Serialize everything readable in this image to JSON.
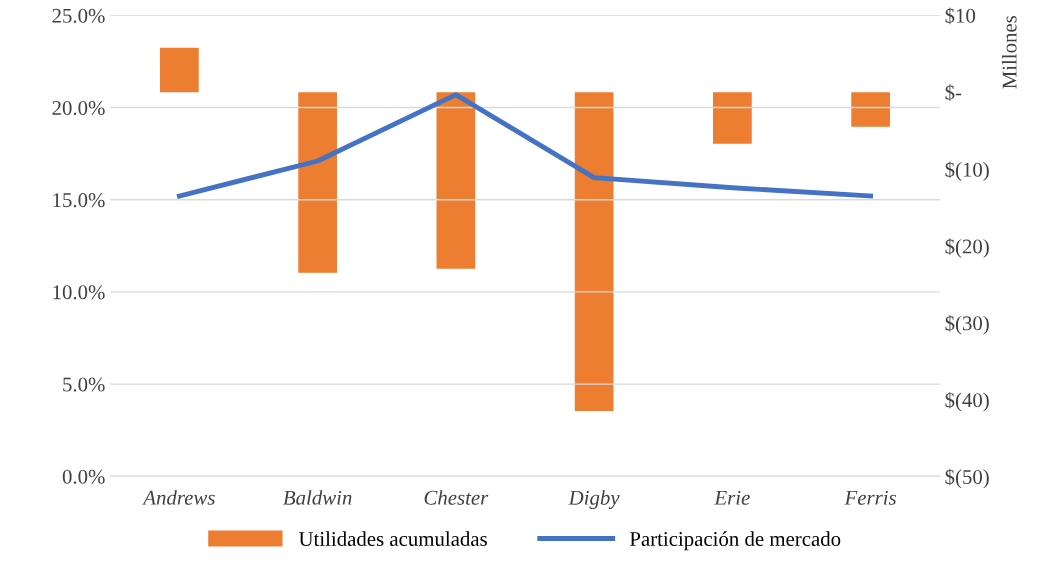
{
  "chart_data": {
    "type": "bar",
    "categories": [
      "Andrews",
      "Baldwin",
      "Chester",
      "Digby",
      "Erie",
      "Ferris"
    ],
    "series": [
      {
        "name": "Utilidades acumuladas",
        "axis": "y2",
        "color": "#ed7d31",
        "values": [
          5.8,
          -23.5,
          -23.0,
          -41.5,
          -6.7,
          -4.5
        ]
      },
      {
        "name": "Participación de mercado",
        "type": "line",
        "axis": "y",
        "color": "#4472c4",
        "values": [
          15.2,
          17.1,
          20.7,
          16.2,
          15.65,
          15.2
        ]
      }
    ],
    "ylim": [
      0,
      25
    ],
    "yticks": [
      {
        "value": 0,
        "label": "0.0%"
      },
      {
        "value": 5,
        "label": "5.0%"
      },
      {
        "value": 10,
        "label": "10.0%"
      },
      {
        "value": 15,
        "label": "15.0%"
      },
      {
        "value": 20,
        "label": "20.0%"
      },
      {
        "value": 25,
        "label": "25.0%"
      }
    ],
    "y2lim": [
      -50,
      10
    ],
    "y2ticks": [
      {
        "value": -50,
        "label": "$(50)"
      },
      {
        "value": -40,
        "label": "$(40)"
      },
      {
        "value": -30,
        "label": "$(30)"
      },
      {
        "value": -20,
        "label": "$(20)"
      },
      {
        "value": -10,
        "label": "$(10)"
      },
      {
        "value": 0,
        "label": "$-"
      },
      {
        "value": 10,
        "label": "$10"
      }
    ],
    "y2label": "Millones",
    "grid": "y",
    "legend": "bottom",
    "marker": "none",
    "line_style": "solid"
  }
}
